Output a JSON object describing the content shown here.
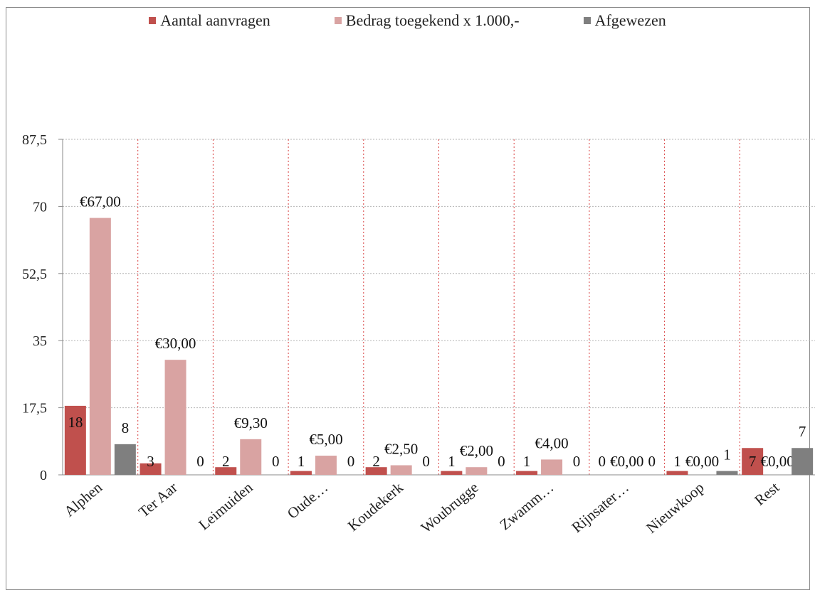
{
  "chart_data": {
    "type": "bar",
    "categories": [
      "Alphen",
      "Ter Aar",
      "Leimuiden",
      "Oude…",
      "Koudekerk",
      "Woubrugge",
      "Zwamm…",
      "Rijnsater…",
      "Nieuwkoop",
      "Rest"
    ],
    "series": [
      {
        "name": "Aantal aanvragen",
        "color": "#c0504d",
        "values": [
          18,
          3,
          2,
          1,
          2,
          1,
          1,
          0,
          1,
          7
        ],
        "labels": [
          "18",
          "3",
          "2",
          "1",
          "2",
          "1",
          "1",
          "0",
          "1",
          "7"
        ]
      },
      {
        "name": "Bedrag toegekend x 1.000,-",
        "color": "#d9a3a2",
        "values": [
          67,
          30,
          9.3,
          5,
          2.5,
          2,
          4,
          0,
          0,
          0
        ],
        "labels": [
          "€67,00",
          "€30,00",
          "€9,30",
          "€5,00",
          "€2,50",
          "€2,00",
          "€4,00",
          "€0,00",
          "€0,00",
          "€0,00"
        ]
      },
      {
        "name": "Afgewezen",
        "color": "#7f7f7f",
        "values": [
          8,
          0,
          0,
          0,
          0,
          0,
          0,
          0,
          1,
          7
        ],
        "labels": [
          "8",
          "0",
          "0",
          "0",
          "0",
          "0",
          "0",
          "0",
          "1",
          "7"
        ]
      }
    ],
    "yticks": [
      "0",
      "17,5",
      "35",
      "52,5",
      "70",
      "87,5"
    ],
    "ylim": [
      0,
      87.5
    ],
    "grid": true,
    "legend_position": "top"
  }
}
